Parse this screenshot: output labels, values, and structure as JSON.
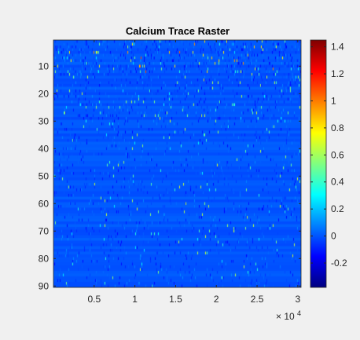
{
  "chart_data": {
    "type": "heatmap",
    "title": "Calcium Trace Raster",
    "xlabel": "",
    "ylabel": "",
    "x_range": [
      1,
      30400
    ],
    "y_range": [
      1,
      90
    ],
    "y_direction": "reverse",
    "x_ticks": [
      {
        "value": 5000,
        "label": "0.5"
      },
      {
        "value": 10000,
        "label": "1"
      },
      {
        "value": 15000,
        "label": "1.5"
      },
      {
        "value": 20000,
        "label": "2"
      },
      {
        "value": 25000,
        "label": "2.5"
      },
      {
        "value": 30000,
        "label": "3"
      }
    ],
    "x_exponent": {
      "base": "× 10",
      "power": "4"
    },
    "y_ticks": [
      10,
      20,
      30,
      40,
      50,
      60,
      70,
      80,
      90
    ],
    "colorbar": {
      "colormap": "jet",
      "clim": [
        -0.38,
        1.45
      ],
      "ticks": [
        {
          "value": -0.2,
          "label": "-0.2"
        },
        {
          "value": 0,
          "label": "0"
        },
        {
          "value": 0.2,
          "label": "0.2"
        },
        {
          "value": 0.4,
          "label": "0.4"
        },
        {
          "value": 0.6,
          "label": "0.6"
        },
        {
          "value": 0.8,
          "label": "0.8"
        },
        {
          "value": 1,
          "label": "1"
        },
        {
          "value": 1.2,
          "label": "1.2"
        },
        {
          "value": 1.4,
          "label": "1.4"
        }
      ]
    },
    "rows": 90,
    "baseline_value": 0,
    "grid": false,
    "legend": "none"
  },
  "colors": {
    "figure_background": "#f0f0f0",
    "axis": "#262626",
    "baseline_fill": "#1a64e6"
  }
}
